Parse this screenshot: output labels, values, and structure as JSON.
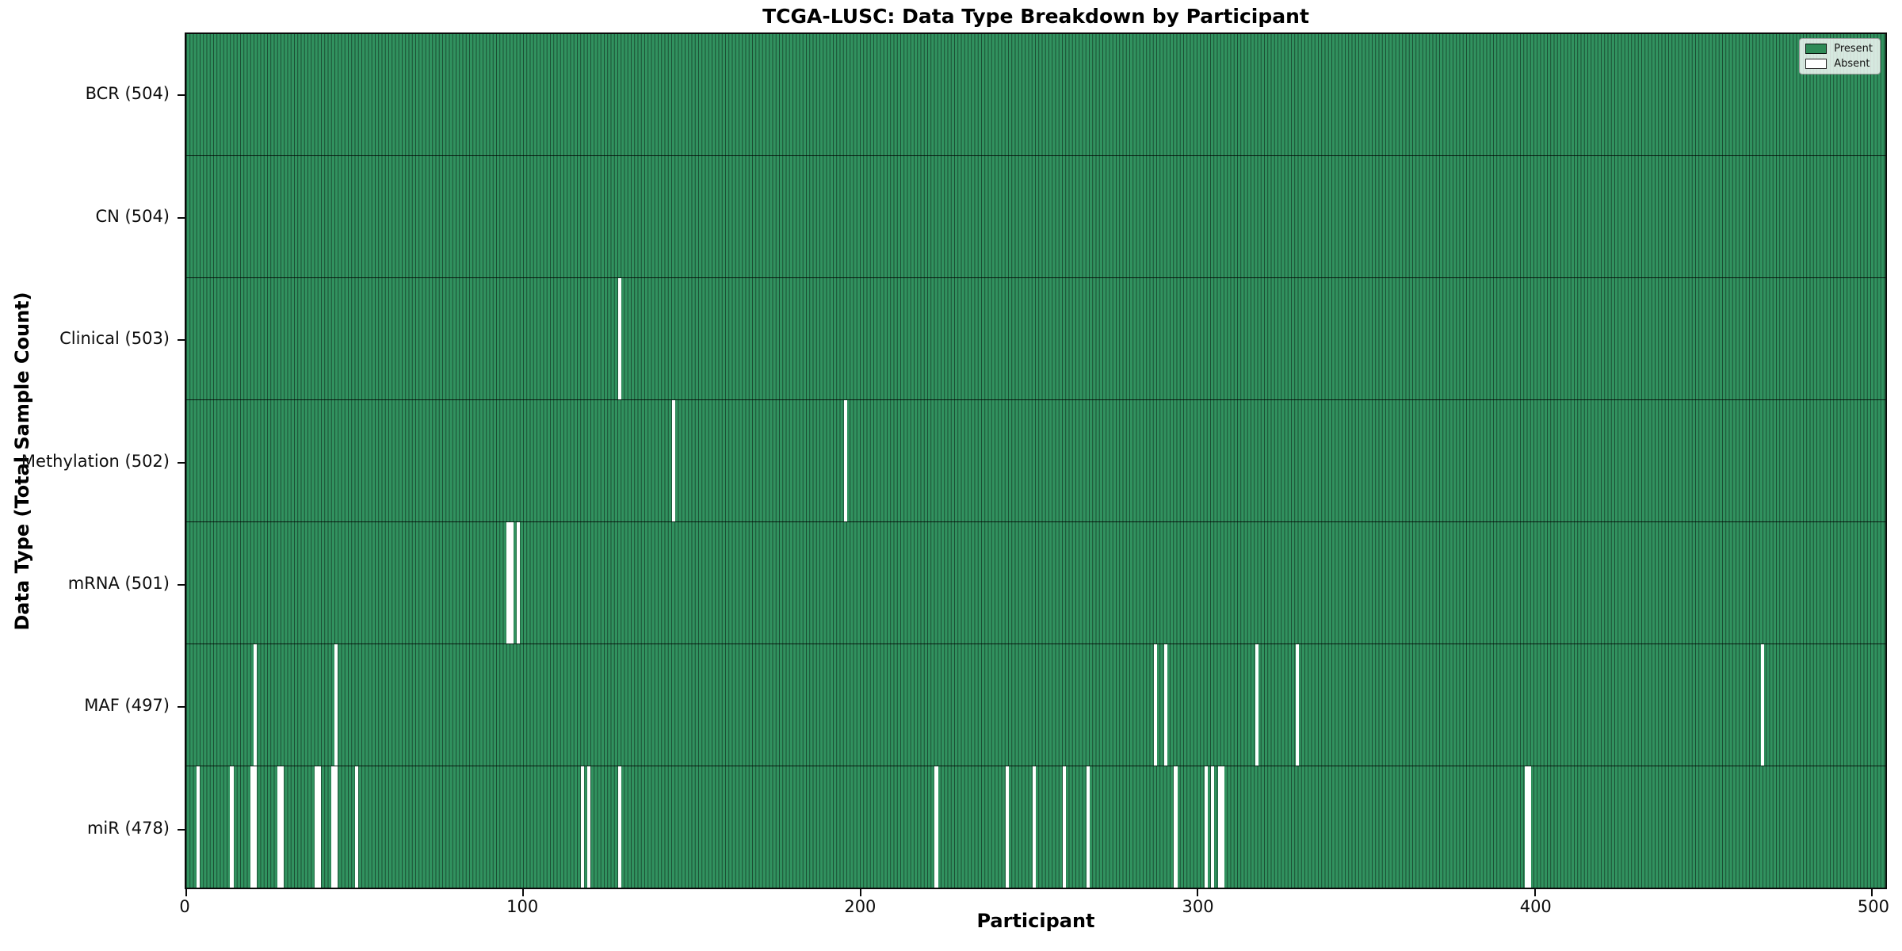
{
  "chart_data": {
    "type": "heatmap",
    "title": "TCGA-LUSC: Data Type Breakdown by Participant",
    "xlabel": "Participant",
    "ylabel": "Data Type (Total Sample Count)",
    "x_ticks": [
      0,
      100,
      200,
      300,
      400,
      500
    ],
    "xlim": [
      0,
      504
    ],
    "total_participants": 504,
    "grid": false,
    "legend_position": "upper right",
    "legend": [
      {
        "label": "Present",
        "color": "#2e8b57"
      },
      {
        "label": "Absent",
        "color": "#ffffff"
      }
    ],
    "colors": {
      "present": "#2e8b57",
      "absent": "#ffffff",
      "bar_edge": "#1c4f34",
      "spine": "#0a0a0a"
    },
    "rows": [
      {
        "data_type": "BCR",
        "total_sample_count": 504,
        "label": "BCR (504)",
        "absent_participants": []
      },
      {
        "data_type": "CN",
        "total_sample_count": 504,
        "label": "CN (504)",
        "absent_participants": []
      },
      {
        "data_type": "Clinical",
        "total_sample_count": 503,
        "label": "Clinical (503)",
        "absent_participants": [
          128
        ]
      },
      {
        "data_type": "Methylation",
        "total_sample_count": 502,
        "label": "Methylation (502)",
        "absent_participants": [
          144,
          195
        ]
      },
      {
        "data_type": "mRNA",
        "total_sample_count": 501,
        "label": "mRNA (501)",
        "absent_participants": [
          95,
          96,
          98
        ]
      },
      {
        "data_type": "MAF",
        "total_sample_count": 497,
        "label": "MAF (497)",
        "absent_participants": [
          20,
          44,
          287,
          290,
          317,
          329,
          467
        ]
      },
      {
        "data_type": "miR",
        "total_sample_count": 478,
        "label": "miR (478)",
        "absent_participants": [
          3,
          13,
          19,
          20,
          27,
          28,
          38,
          39,
          43,
          44,
          50,
          117,
          119,
          128,
          222,
          243,
          251,
          260,
          267,
          293,
          302,
          304,
          306,
          307,
          397,
          398
        ]
      }
    ]
  }
}
